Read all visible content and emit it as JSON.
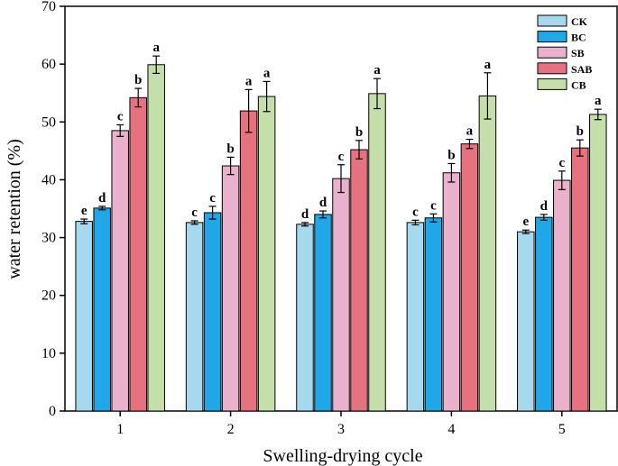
{
  "chart_data": {
    "type": "bar",
    "title": "",
    "xlabel": "Swelling-drying cycle",
    "ylabel": "water retention (%)",
    "ylim": [
      0,
      70
    ],
    "yticks": [
      0,
      10,
      20,
      30,
      40,
      50,
      60,
      70
    ],
    "categories": [
      "1",
      "2",
      "3",
      "4",
      "5"
    ],
    "legend_position": "top-right",
    "series": [
      {
        "name": "CK",
        "color": "#a6d8ee",
        "values": [
          32.8,
          32.6,
          32.3,
          32.6,
          31.0
        ],
        "errors": [
          0.4,
          0.3,
          0.3,
          0.4,
          0.3
        ],
        "letters": [
          "e",
          "c",
          "d",
          "c",
          "e"
        ]
      },
      {
        "name": "BC",
        "color": "#1fa7e8",
        "values": [
          35.1,
          34.3,
          34.0,
          33.4,
          33.5
        ],
        "errors": [
          0.3,
          1.1,
          0.6,
          0.7,
          0.5
        ],
        "letters": [
          "d",
          "c",
          "d",
          "c",
          "d"
        ]
      },
      {
        "name": "SB",
        "color": "#eab1cd",
        "values": [
          48.5,
          42.4,
          40.2,
          41.2,
          39.9
        ],
        "errors": [
          1.0,
          1.5,
          2.4,
          1.6,
          1.6
        ],
        "letters": [
          "c",
          "b",
          "c",
          "b",
          "c"
        ]
      },
      {
        "name": "SAB",
        "color": "#e7727f",
        "values": [
          54.2,
          51.9,
          45.2,
          46.2,
          45.5
        ],
        "errors": [
          1.6,
          3.7,
          1.6,
          0.8,
          1.4
        ],
        "letters": [
          "b",
          "a",
          "b",
          "a",
          "b"
        ]
      },
      {
        "name": "CB",
        "color": "#c4dfaa",
        "values": [
          59.9,
          54.4,
          54.9,
          54.5,
          51.3
        ],
        "errors": [
          1.5,
          2.6,
          2.6,
          4.0,
          0.9
        ],
        "letters": [
          "a",
          "a",
          "a",
          "a",
          "a"
        ]
      }
    ]
  }
}
